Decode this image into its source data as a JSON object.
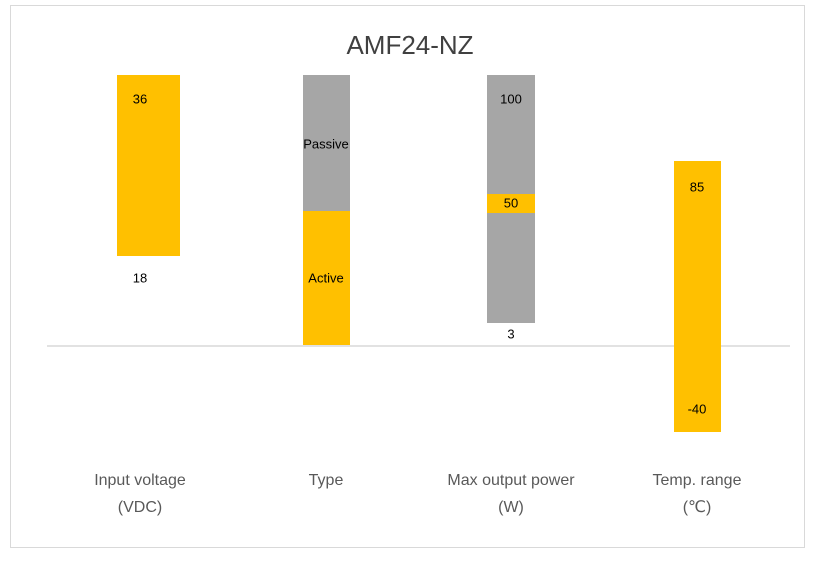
{
  "title": "AMF24-NZ",
  "columns": [
    {
      "label": [
        "Input voltage",
        "(VDC)"
      ],
      "high": 36,
      "low": 18
    },
    {
      "label": [
        "Type"
      ],
      "upper": "Passive",
      "lower": "Active"
    },
    {
      "label": [
        "Max output power",
        "(W)"
      ],
      "high": 100,
      "mid": 50,
      "low": 3
    },
    {
      "label": [
        "Temp. range",
        "(℃)"
      ],
      "high": 85,
      "low": -40
    }
  ]
}
